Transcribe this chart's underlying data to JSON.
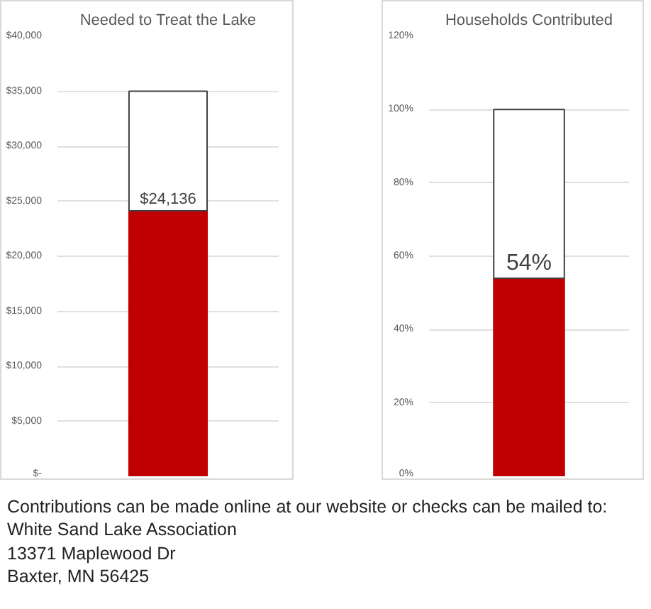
{
  "chart_data": [
    {
      "type": "bar",
      "title": "Needed to Treat the Lake",
      "categories": [
        null
      ],
      "stacked": true,
      "series": [
        {
          "color": "#c00000",
          "values": [
            24136
          ],
          "value_labels": [
            "$24,136"
          ]
        },
        {
          "color": "#ffffff",
          "values": [
            10864
          ]
        }
      ],
      "ylim": [
        0,
        40000
      ],
      "yticks": [
        {
          "value": 0,
          "label": "$-"
        },
        {
          "value": 5000,
          "label": "$5,000"
        },
        {
          "value": 10000,
          "label": "$10,000"
        },
        {
          "value": 15000,
          "label": "$15,000"
        },
        {
          "value": 20000,
          "label": "$20,000"
        },
        {
          "value": 25000,
          "label": "$25,000"
        },
        {
          "value": 30000,
          "label": "$30,000"
        },
        {
          "value": 35000,
          "label": "$35,000"
        },
        {
          "value": 40000,
          "label": "$40,000"
        }
      ],
      "grid": "y"
    },
    {
      "type": "bar",
      "title": "Households Contributed",
      "categories": [
        null
      ],
      "stacked": true,
      "series": [
        {
          "color": "#c00000",
          "values": [
            54
          ],
          "value_labels": [
            "54%"
          ]
        },
        {
          "color": "#ffffff",
          "values": [
            46
          ]
        }
      ],
      "ylim": [
        0,
        120
      ],
      "yticks": [
        {
          "value": 0,
          "label": "0%"
        },
        {
          "value": 20,
          "label": "20%"
        },
        {
          "value": 40,
          "label": "40%"
        },
        {
          "value": 60,
          "label": "60%"
        },
        {
          "value": 80,
          "label": "80%"
        },
        {
          "value": 100,
          "label": "100%"
        },
        {
          "value": 120,
          "label": "120%"
        }
      ],
      "grid": "y",
      "annotations": [
        "Contributions can be made online at our website or checks can be mailed to:",
        "White Sand Lake Association",
        "13371 Maplewood Dr",
        "Baxter, MN 56425"
      ]
    }
  ]
}
